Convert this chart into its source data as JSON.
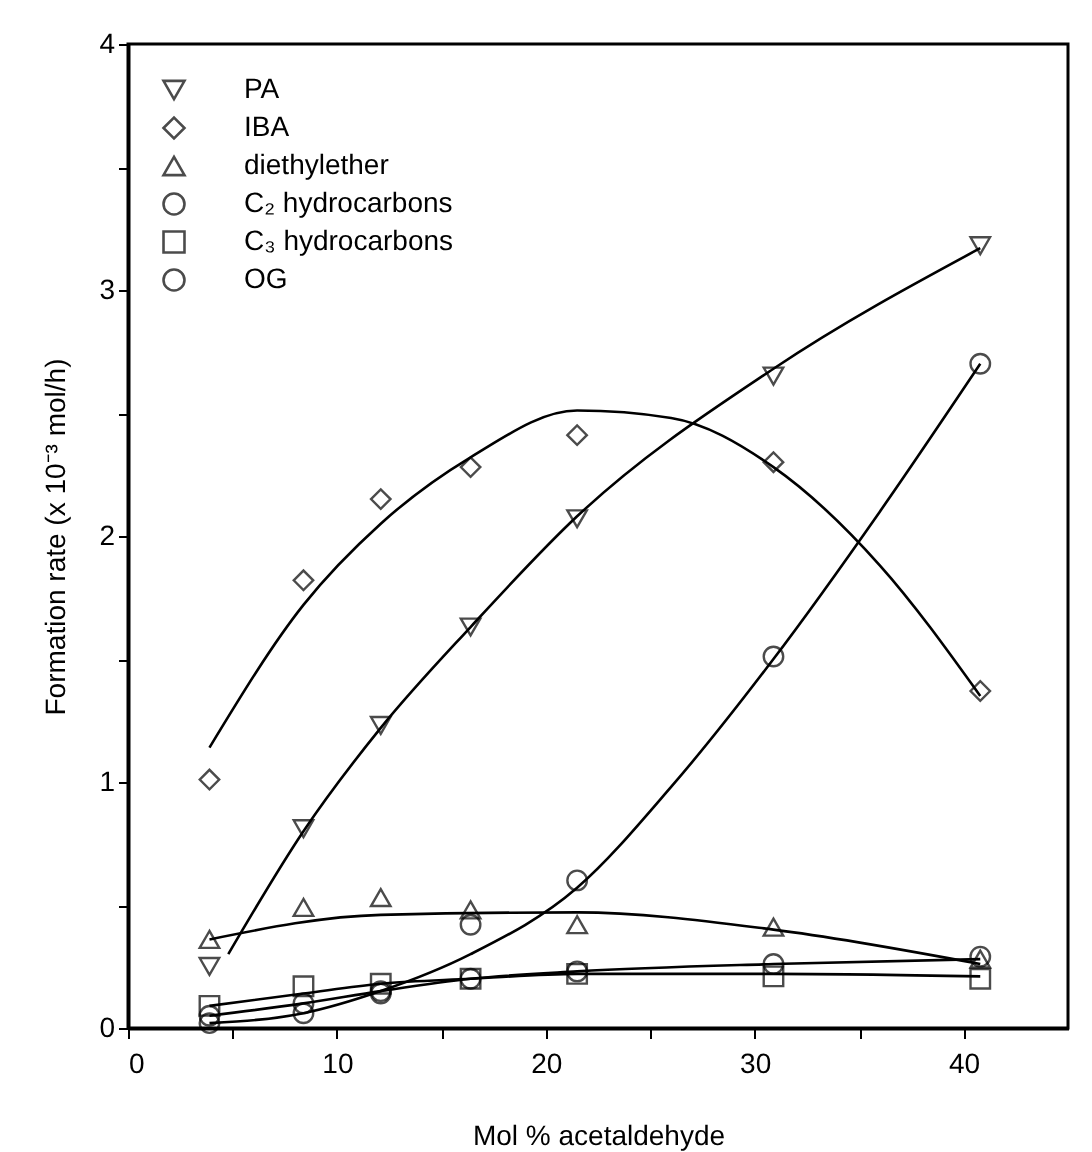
{
  "chart_data": {
    "type": "scatter",
    "xlabel": "Mol % acetaldehyde",
    "ylabel": "Formation rate (x 10⁻³ mol/h)",
    "xlim": [
      0,
      45
    ],
    "xticks": [
      0,
      {
        "value": 5,
        "label": null
      },
      10,
      {
        "value": 15,
        "label": null
      },
      20,
      {
        "value": 25,
        "label": null
      },
      30,
      {
        "value": 35,
        "label": null
      },
      40
    ],
    "ylim": [
      0,
      4
    ],
    "yticks": [
      0,
      {
        "value": 0.5,
        "label": null
      },
      1,
      {
        "value": 1.5,
        "label": null
      },
      2,
      {
        "value": 2.5,
        "label": null
      },
      3,
      {
        "value": 3.5,
        "label": null
      },
      4
    ],
    "grid": false,
    "legend": "top left",
    "x": [
      3.9,
      8.4,
      12.1,
      16.4,
      21.5,
      30.9,
      40.8
    ],
    "series": [
      {
        "name": "PA",
        "type": "scatter",
        "marker": "triangle-down",
        "color": "#000000",
        "values": [
          0.25,
          0.81,
          1.23,
          1.63,
          2.07,
          2.65,
          3.18
        ]
      },
      {
        "name": "IBA",
        "type": "scatter",
        "marker": "diamond",
        "color": "#000000",
        "values": [
          1.01,
          1.82,
          2.15,
          2.28,
          2.41,
          2.3,
          1.37
        ]
      },
      {
        "name": "diethylether",
        "type": "scatter",
        "marker": "triangle",
        "color": "#000000",
        "values": [
          0.36,
          0.49,
          0.53,
          0.48,
          0.42,
          0.41,
          0.28
        ]
      },
      {
        "name": "C₂ hydrocarbons",
        "type": "scatter",
        "marker": "circle",
        "color": "#000000",
        "values": [
          0.05,
          0.1,
          0.15,
          0.2,
          0.23,
          0.26,
          0.29
        ]
      },
      {
        "name": "C₃ hydrocarbons",
        "type": "scatter",
        "marker": "square",
        "color": "#000000",
        "values": [
          0.09,
          0.17,
          0.18,
          0.2,
          0.22,
          0.21,
          0.2
        ]
      },
      {
        "name": "OG",
        "type": "scatter",
        "marker": "circle",
        "color": "#000000",
        "values": [
          0.02,
          0.06,
          0.14,
          0.42,
          0.6,
          1.51,
          2.7
        ]
      },
      {
        "type": "line",
        "color": "#000000",
        "x": [
          4.8,
          8.4,
          12.1,
          16.4,
          21.5,
          30.9,
          40.8
        ],
        "values": [
          0.3,
          0.8,
          1.22,
          1.63,
          2.08,
          2.68,
          3.17
        ]
      },
      {
        "type": "line",
        "color": "#000000",
        "x": [
          3.9,
          8.4,
          12.1,
          16.4,
          21.5,
          26,
          30.9,
          36,
          40.8
        ],
        "values": [
          1.14,
          1.72,
          2.05,
          2.32,
          2.51,
          2.48,
          2.28,
          1.88,
          1.35
        ]
      },
      {
        "type": "line",
        "color": "#000000",
        "x": [
          3.9,
          12.1,
          21.5,
          30.9,
          40.8
        ],
        "values": [
          0.36,
          0.46,
          0.47,
          0.4,
          0.26
        ]
      },
      {
        "type": "line",
        "color": "#000000",
        "x": [
          3.9,
          8.4,
          12.1,
          16.4,
          21.5,
          30.9,
          40.8
        ],
        "values": [
          0.05,
          0.1,
          0.15,
          0.2,
          0.23,
          0.26,
          0.28
        ]
      },
      {
        "type": "line",
        "color": "#000000",
        "x": [
          3.9,
          8.4,
          12.1,
          16.4,
          21.5,
          30.9,
          40.8
        ],
        "values": [
          0.09,
          0.14,
          0.18,
          0.2,
          0.22,
          0.22,
          0.21
        ]
      },
      {
        "type": "line",
        "color": "#000000",
        "x": [
          3.9,
          8.4,
          12.1,
          16.4,
          21.5,
          26,
          30.9,
          36,
          40.8
        ],
        "values": [
          0.02,
          0.06,
          0.15,
          0.3,
          0.57,
          0.98,
          1.5,
          2.1,
          2.7
        ]
      }
    ]
  }
}
